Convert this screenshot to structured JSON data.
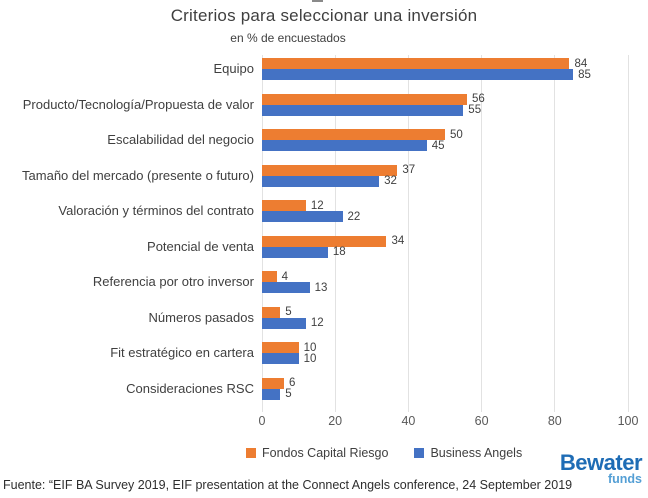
{
  "title": "Criterios para seleccionar una inversión",
  "subtitle": "en % de encuestados",
  "chart_data": {
    "type": "bar",
    "orientation": "horizontal",
    "categories": [
      "Equipo",
      "Producto/Tecnología/Propuesta de valor",
      "Escalabilidad del negocio",
      "Tamaño del mercado (presente o futuro)",
      "Valoración y términos del contrato",
      "Potencial de venta",
      "Referencia por otro inversor",
      "Números pasados",
      "Fit estratégico en cartera",
      "Consideraciones RSC"
    ],
    "series": [
      {
        "name": "Fondos Capital Riesgo",
        "color": "#ED7D31",
        "values": [
          84,
          56,
          50,
          37,
          12,
          34,
          4,
          5,
          10,
          6
        ]
      },
      {
        "name": "Business Angels",
        "color": "#4472C4",
        "values": [
          85,
          55,
          45,
          32,
          22,
          18,
          13,
          12,
          10,
          5
        ]
      }
    ],
    "xlim": [
      0,
      100
    ],
    "xticks": [
      0,
      20,
      40,
      60,
      80,
      100
    ],
    "grid": "vertical",
    "gridline_color": "#E2E2E2",
    "legend_position": "bottom",
    "data_labels": "outside-end"
  },
  "footer": {
    "source": "Fuente: “EIF BA Survey 2019, EIF presentation at the Connect Angels conference, 24 September 2019"
  },
  "logo": {
    "name": "Bewater",
    "sub": "funds",
    "color": "#1E6CB5",
    "sub_color": "#549FD5"
  }
}
